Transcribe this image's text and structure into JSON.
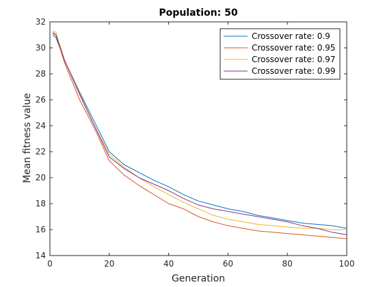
{
  "chart_data": {
    "type": "line",
    "title": "Population: 50",
    "xlabel": "Generation",
    "ylabel": "Mean fitness value",
    "xlim": [
      0,
      100
    ],
    "ylim": [
      14,
      32
    ],
    "xticks": [
      0,
      20,
      40,
      60,
      80,
      100
    ],
    "yticks": [
      14,
      16,
      18,
      20,
      22,
      24,
      26,
      28,
      30,
      32
    ],
    "grid": false,
    "legend_position": "top-right",
    "x": [
      1,
      2,
      5,
      10,
      15,
      20,
      25,
      30,
      35,
      40,
      45,
      50,
      55,
      60,
      65,
      70,
      75,
      80,
      85,
      90,
      95,
      100
    ],
    "series": [
      {
        "name": "Crossover rate: 0.9",
        "color": "#0072BD",
        "values": [
          31.0,
          30.8,
          29.0,
          26.6,
          24.3,
          22.0,
          21.0,
          20.4,
          19.8,
          19.3,
          18.7,
          18.2,
          17.9,
          17.6,
          17.4,
          17.1,
          16.9,
          16.7,
          16.5,
          16.4,
          16.3,
          16.1
        ]
      },
      {
        "name": "Crossover rate: 0.95",
        "color": "#D95319",
        "values": [
          31.1,
          31.0,
          28.8,
          26.0,
          23.8,
          21.3,
          20.2,
          19.4,
          18.7,
          18.0,
          17.6,
          17.0,
          16.6,
          16.3,
          16.1,
          15.9,
          15.8,
          15.7,
          15.6,
          15.5,
          15.4,
          15.3
        ]
      },
      {
        "name": "Crossover rate: 0.97",
        "color": "#EDB120",
        "values": [
          31.3,
          31.2,
          29.0,
          26.5,
          24.0,
          21.8,
          20.8,
          20.0,
          19.3,
          18.7,
          18.1,
          17.6,
          17.1,
          16.8,
          16.6,
          16.4,
          16.3,
          16.2,
          16.1,
          16.1,
          16.0,
          16.0
        ]
      },
      {
        "name": "Crossover rate: 0.99",
        "color": "#7E2F8E",
        "values": [
          31.2,
          31.0,
          29.0,
          26.4,
          24.0,
          21.6,
          20.7,
          20.0,
          19.5,
          19.0,
          18.4,
          17.9,
          17.6,
          17.4,
          17.2,
          17.0,
          16.8,
          16.6,
          16.3,
          16.1,
          15.8,
          15.6
        ]
      }
    ]
  }
}
